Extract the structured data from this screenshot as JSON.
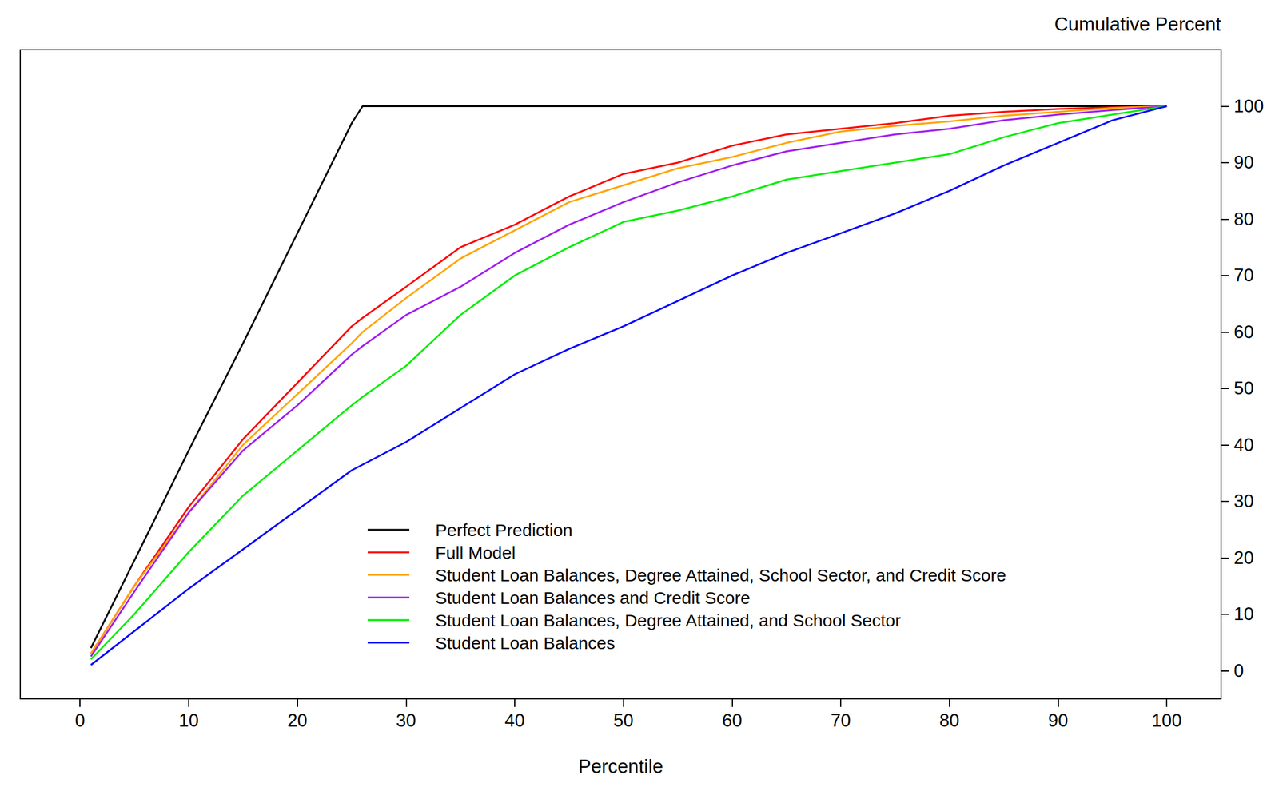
{
  "chart_data": {
    "type": "line",
    "x_label": "Percentile",
    "y_label": "Cumulative Percent",
    "x": [
      1,
      5,
      10,
      15,
      20,
      25,
      26,
      30,
      35,
      40,
      45,
      50,
      55,
      60,
      65,
      70,
      75,
      80,
      85,
      90,
      95,
      100
    ],
    "series": [
      {
        "name": "Perfect Prediction",
        "color": "#000000",
        "values": [
          4,
          19.5,
          39,
          58,
          77.5,
          97,
          100,
          100,
          100,
          100,
          100,
          100,
          100,
          100,
          100,
          100,
          100,
          100,
          100,
          100,
          100,
          100
        ]
      },
      {
        "name": "Full Model",
        "color": "#ff0000",
        "values": [
          3,
          15,
          29,
          41,
          51,
          61,
          62.5,
          68,
          75,
          79,
          84,
          88,
          90,
          93,
          95,
          96,
          97,
          98.3,
          99,
          99.5,
          99.8,
          100
        ]
      },
      {
        "name": "Student Loan Balances, Degree Attained, School Sector, and Credit Score",
        "color": "#ffa500",
        "values": [
          3,
          15,
          28,
          40,
          49,
          58,
          60,
          66,
          73,
          78,
          83,
          86,
          89,
          91,
          93.5,
          95.5,
          96.5,
          97.3,
          98.3,
          99,
          99.7,
          100
        ]
      },
      {
        "name": "Student Loan Balances and Credit Score",
        "color": "#a020f0",
        "values": [
          2.5,
          14,
          28,
          39,
          47,
          56,
          57.5,
          63,
          68,
          74,
          79,
          83,
          86.5,
          89.5,
          92,
          93.5,
          95,
          96,
          97.5,
          98.5,
          99.3,
          100
        ]
      },
      {
        "name": "Student Loan Balances, Degree Attained, and School Sector",
        "color": "#00ee00",
        "values": [
          2,
          10,
          21,
          31,
          39,
          47,
          48.5,
          54,
          63,
          70,
          75,
          79.5,
          81.5,
          84,
          87,
          88.5,
          90,
          91.5,
          94.5,
          97,
          98.5,
          100
        ]
      },
      {
        "name": "Student Loan Balances",
        "color": "#0000ff",
        "values": [
          1,
          7,
          14.5,
          21.5,
          28.5,
          35.5,
          36.5,
          40.5,
          46.5,
          52.5,
          57,
          61,
          65.5,
          70,
          74,
          77.5,
          81,
          85,
          89.5,
          93.5,
          97.5,
          100
        ]
      }
    ],
    "xlim": [
      -5.5,
      105
    ],
    "xticks": [
      0,
      10,
      20,
      30,
      40,
      50,
      60,
      70,
      80,
      90,
      100
    ],
    "ylim": [
      -5,
      110
    ],
    "yticks": [
      0,
      10,
      20,
      30,
      40,
      50,
      60,
      70,
      80,
      90,
      100
    ],
    "grid": false,
    "legend": "bottom"
  }
}
